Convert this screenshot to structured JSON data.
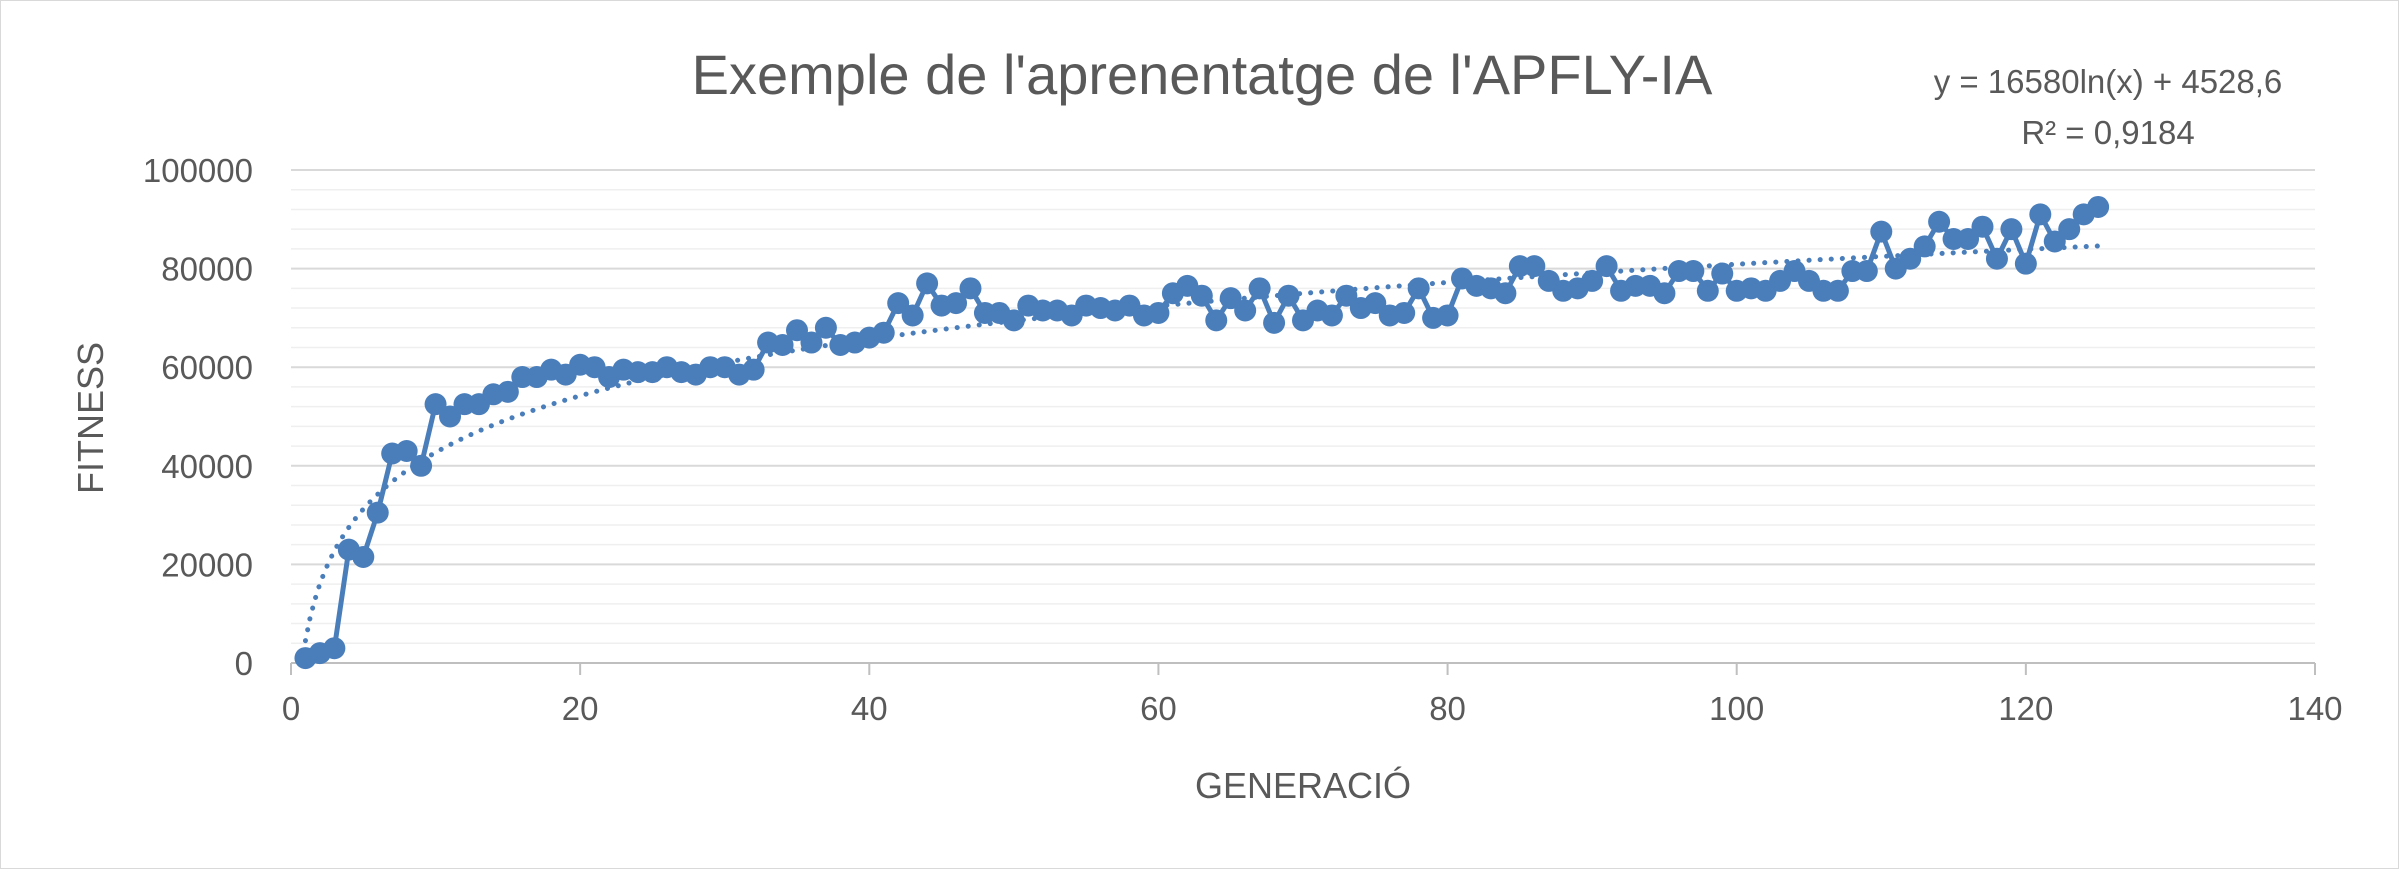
{
  "chart_data": {
    "type": "line",
    "title": "Exemple de l'aprenentatge de l'APFLY-IA",
    "xlabel": "GENERACIÓ",
    "ylabel": "FITNESS",
    "xlim": [
      0,
      140
    ],
    "ylim": [
      0,
      100000
    ],
    "x_ticks": [
      0,
      20,
      40,
      60,
      80,
      100,
      120,
      140
    ],
    "y_ticks": [
      0,
      20000,
      40000,
      60000,
      80000,
      100000
    ],
    "x_tick_labels": [
      "0",
      "20",
      "40",
      "60",
      "80",
      "100",
      "120",
      "140"
    ],
    "y_tick_labels": [
      "0",
      "20000",
      "40000",
      "60000",
      "80000",
      "100000"
    ],
    "grid": {
      "major_y": true,
      "minor_y": true,
      "x": false
    },
    "legend": "none",
    "series_color": "#4a7ebb",
    "series": [
      {
        "x": [
          1,
          2,
          3,
          4,
          5,
          6,
          7,
          8,
          9,
          10,
          11,
          12,
          13,
          14,
          15,
          16,
          17,
          18,
          19,
          20,
          21,
          22,
          23,
          24,
          25,
          26,
          27,
          28,
          29,
          30,
          31,
          32,
          33,
          34,
          35,
          36,
          37,
          38,
          39,
          40,
          41,
          42,
          43,
          44,
          45,
          46,
          47,
          48,
          49,
          50,
          51,
          52,
          53,
          54,
          55,
          56,
          57,
          58,
          59,
          60,
          61,
          62,
          63,
          64,
          65,
          66,
          67,
          68,
          69,
          70,
          71,
          72,
          73,
          74,
          75,
          76,
          77,
          78,
          79,
          80,
          81,
          82,
          83,
          84,
          85,
          86,
          87,
          88,
          89,
          90,
          91,
          92,
          93,
          94,
          95,
          96,
          97,
          98,
          99,
          100,
          101,
          102,
          103,
          104,
          105,
          106,
          107,
          108,
          109,
          110,
          111,
          112,
          113,
          114,
          115,
          116,
          117,
          118,
          119,
          120,
          121,
          122,
          123,
          124,
          125
        ],
        "values": [
          1000,
          2000,
          3000,
          23000,
          21500,
          30500,
          42500,
          43000,
          40000,
          52500,
          50000,
          52500,
          52500,
          54500,
          55000,
          58000,
          58000,
          59500,
          58500,
          60500,
          60000,
          58000,
          59500,
          59000,
          59000,
          60000,
          59000,
          58500,
          60000,
          60000,
          58500,
          59500,
          65000,
          64500,
          67500,
          65000,
          68000,
          64500,
          65000,
          66000,
          67000,
          73000,
          70500,
          77000,
          72500,
          73000,
          76000,
          71000,
          71000,
          69500,
          72500,
          71500,
          71500,
          70500,
          72500,
          72000,
          71500,
          72500,
          70500,
          71000,
          75000,
          76500,
          74500,
          69500,
          74000,
          71500,
          76000,
          69000,
          74500,
          69500,
          71500,
          70500,
          74500,
          72000,
          73000,
          70500,
          71000,
          76000,
          70000,
          70500,
          78000,
          76500,
          76000,
          75000,
          80500,
          80500,
          77500,
          75500,
          76000,
          77500,
          80500,
          75500,
          76500,
          76500,
          75000,
          79500,
          79500,
          75500,
          79000,
          75500,
          76000,
          75500,
          77500,
          79500,
          77500,
          75500,
          75500,
          79500,
          79500,
          87500,
          80000,
          82000,
          84500,
          89500,
          86000,
          86000,
          88500,
          82000,
          88000,
          81000,
          91000,
          85500,
          88000,
          91000,
          92500
        ]
      }
    ],
    "trendline": {
      "type": "logarithmic",
      "a": 16580,
      "b": 4528.6,
      "x_range": [
        1,
        125
      ],
      "style": "dotted",
      "equation": "y = 16580ln(x) + 4528,6",
      "r2": "R² = 0,9184"
    }
  }
}
